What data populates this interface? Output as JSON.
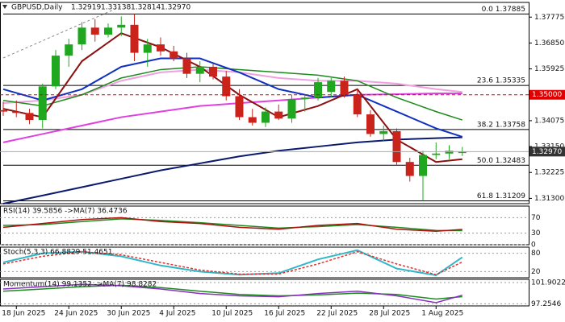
{
  "chart_data": [
    {
      "type": "candlestick",
      "title": "GBPUSD,Daily",
      "header_values": [
        "1.32919",
        "1.33138",
        "1.32814",
        "1.32970"
      ],
      "categories": [
        null,
        "18 Jun 2025",
        null,
        null,
        null,
        "24 Jun 2025",
        null,
        null,
        null,
        "30 Jun 2025",
        null,
        null,
        null,
        "4 Jul 2025",
        null,
        null,
        null,
        "10 Jul 2025",
        null,
        null,
        null,
        "16 Jul 2025",
        null,
        null,
        null,
        "22 Jul 2025",
        null,
        null,
        null,
        "28 Jul 2025",
        null,
        null,
        null,
        "1 Aug 2025",
        null,
        null
      ],
      "open": [
        1.3445,
        1.344,
        1.3435,
        1.341,
        1.353,
        1.364,
        1.368,
        1.374,
        1.3715,
        1.374,
        1.375,
        1.365,
        1.368,
        1.3655,
        1.363,
        1.3575,
        1.36,
        1.3565,
        1.3495,
        1.342,
        1.34,
        1.344,
        1.3415,
        1.3485,
        1.349,
        1.351,
        1.355,
        1.35,
        1.343,
        1.336,
        1.337,
        1.326,
        1.321,
        1.3285,
        1.329,
        1.32919
      ],
      "high": [
        1.3475,
        1.348,
        1.345,
        1.354,
        1.366,
        1.37,
        1.376,
        1.377,
        1.3755,
        1.378,
        1.37885,
        1.37,
        1.3705,
        1.3675,
        1.365,
        1.362,
        1.361,
        1.3585,
        1.352,
        1.345,
        1.3455,
        1.3465,
        1.35,
        1.35,
        1.356,
        1.356,
        1.3565,
        1.352,
        1.3445,
        1.339,
        1.338,
        1.3275,
        1.33,
        1.333,
        1.332,
        1.33138
      ],
      "low": [
        1.3425,
        1.342,
        1.3395,
        1.338,
        1.352,
        1.36,
        1.366,
        1.369,
        1.3705,
        1.371,
        1.362,
        1.36,
        1.364,
        1.362,
        1.356,
        1.3545,
        1.3555,
        1.348,
        1.341,
        1.339,
        1.3385,
        1.341,
        1.34,
        1.344,
        1.348,
        1.349,
        1.349,
        1.342,
        1.335,
        1.3335,
        1.325,
        1.319,
        1.31209,
        1.327,
        1.327,
        1.32814
      ],
      "close": [
        1.344,
        1.3435,
        1.341,
        1.353,
        1.364,
        1.368,
        1.374,
        1.3715,
        1.374,
        1.375,
        1.365,
        1.368,
        1.3655,
        1.363,
        1.3575,
        1.36,
        1.3565,
        1.3495,
        1.342,
        1.34,
        1.344,
        1.3415,
        1.3485,
        1.349,
        1.3545,
        1.355,
        1.35,
        1.343,
        1.336,
        1.337,
        1.326,
        1.321,
        1.3285,
        1.329,
        1.33,
        1.3297
      ],
      "up_color": "#1fa81f",
      "down_color": "#c9231c",
      "lines": [
        {
          "color": "#0a1a6e",
          "width": 2,
          "x": [
            0,
            3,
            6,
            9,
            12,
            15,
            18,
            21,
            24,
            27,
            30,
            33,
            35
          ],
          "values": [
            1.3111,
            1.314,
            1.317,
            1.32,
            1.323,
            1.3255,
            1.328,
            1.33,
            1.3315,
            1.333,
            1.334,
            1.3345,
            1.3348
          ]
        },
        {
          "color": "#e040e0",
          "width": 2,
          "x": [
            0,
            3,
            6,
            9,
            12,
            15,
            18,
            21,
            24,
            27,
            30,
            33,
            35
          ],
          "values": [
            1.333,
            1.336,
            1.339,
            1.342,
            1.344,
            1.346,
            1.347,
            1.348,
            1.349,
            1.35,
            1.3502,
            1.3505,
            1.3505
          ]
        },
        {
          "color": "#f0a0e0",
          "width": 2,
          "x": [
            0,
            3,
            6,
            9,
            12,
            15,
            18,
            21,
            24,
            27,
            30,
            33,
            35
          ],
          "values": [
            1.347,
            1.348,
            1.35,
            1.355,
            1.358,
            1.359,
            1.358,
            1.356,
            1.355,
            1.355,
            1.354,
            1.352,
            1.351
          ]
        },
        {
          "color": "#1d8a1d",
          "width": 1.5,
          "x": [
            0,
            3,
            6,
            9,
            12,
            15,
            18,
            21,
            24,
            27,
            30,
            33,
            35
          ],
          "values": [
            1.348,
            1.346,
            1.35,
            1.356,
            1.359,
            1.36,
            1.359,
            1.358,
            1.357,
            1.355,
            1.349,
            1.344,
            1.341
          ]
        },
        {
          "color": "#1030c0",
          "width": 2,
          "x": [
            0,
            3,
            6,
            9,
            12,
            15,
            18,
            21,
            24,
            27,
            30,
            33,
            35
          ],
          "values": [
            1.352,
            1.348,
            1.352,
            1.36,
            1.363,
            1.363,
            1.358,
            1.352,
            1.349,
            1.35,
            1.344,
            1.338,
            1.335
          ]
        },
        {
          "color": "#8b1010",
          "width": 2,
          "x": [
            0,
            3,
            6,
            9,
            12,
            15,
            18,
            21,
            24,
            27,
            30,
            33,
            35
          ],
          "values": [
            1.345,
            1.342,
            1.362,
            1.372,
            1.367,
            1.36,
            1.35,
            1.342,
            1.346,
            1.352,
            1.334,
            1.326,
            1.327
          ]
        }
      ],
      "fib_levels": [
        {
          "value": 1.37885,
          "label": "0.0 1.37885"
        },
        {
          "value": 1.35335,
          "label": "23.6 1.35335"
        },
        {
          "value": 1.33758,
          "label": "38.2 1.33758"
        },
        {
          "value": 1.32483,
          "label": "50.0 1.32483"
        },
        {
          "value": 1.31209,
          "label": "61.8 1.31209"
        }
      ],
      "resistance": {
        "value": 1.35,
        "label": "1.35000",
        "color": "#e00000"
      },
      "last": {
        "value": 1.3297,
        "label": "1.32970",
        "color": "#333333"
      },
      "ylim": [
        1.3111,
        1.383
      ],
      "yticks": [
        {
          "value": 1.37775,
          "label": "1.37775"
        },
        {
          "value": 1.3685,
          "label": "1.36850"
        },
        {
          "value": 1.35925,
          "label": "1.35925"
        },
        {
          "value": 1.34075,
          "label": "1.34075"
        },
        {
          "value": 1.3315,
          "label": "1.33150"
        },
        {
          "value": 1.32225,
          "label": "1.32225"
        },
        {
          "value": 1.313,
          "label": "1.31300"
        }
      ]
    },
    {
      "type": "line",
      "title": "RSI(14) 39.5856 ->MA(7) 36.4736",
      "x": [
        0,
        3,
        6,
        9,
        12,
        15,
        18,
        21,
        24,
        27,
        30,
        33,
        35
      ],
      "series": [
        {
          "color": "#1d8a1d",
          "values": [
            50,
            52,
            60,
            67,
            63,
            57,
            50,
            43,
            47,
            52,
            45,
            37,
            36.4736
          ]
        },
        {
          "color": "#b01010",
          "values": [
            45,
            55,
            65,
            70,
            60,
            55,
            45,
            40,
            50,
            55,
            40,
            35,
            39.5856
          ]
        }
      ],
      "ylim": [
        0,
        100
      ],
      "yticks": [
        0,
        30,
        70
      ]
    },
    {
      "type": "line",
      "title": "Stoch(5,3,3) 66.8829 51.4651",
      "x": [
        0,
        3,
        6,
        9,
        12,
        15,
        18,
        21,
        24,
        27,
        30,
        33,
        35
      ],
      "series": [
        {
          "color": "#30b8c8",
          "width": 2,
          "values": [
            50,
            80,
            85,
            70,
            40,
            20,
            10,
            15,
            60,
            90,
            30,
            8,
            66.8829
          ]
        },
        {
          "color": "#e03030",
          "dashed": true,
          "values": [
            45,
            70,
            85,
            75,
            50,
            25,
            12,
            12,
            45,
            85,
            45,
            10,
            51.4651
          ]
        }
      ],
      "ylim": [
        0,
        100
      ],
      "yticks": [
        20,
        80
      ]
    },
    {
      "type": "line",
      "title": "Momentum(14) 99.1352 ->MA(7) 98.8282",
      "x": [
        0,
        3,
        6,
        9,
        12,
        15,
        18,
        21,
        24,
        27,
        30,
        33,
        35
      ],
      "series": [
        {
          "color": "#1d8a1d",
          "values": [
            100,
            100.5,
            101,
            101.3,
            100.8,
            100,
            99.3,
            99,
            99.2,
            99.6,
            99.3,
            98.3,
            98.8282
          ]
        },
        {
          "color": "#8a30c0",
          "values": [
            100.5,
            101,
            101.5,
            101.2,
            100.5,
            99.5,
            99,
            98.8,
            99.5,
            100,
            99,
            97.5,
            99.1352
          ]
        }
      ],
      "ylim": [
        96.8,
        102.6
      ],
      "yticks": [
        97.2546,
        101.9022
      ]
    }
  ]
}
